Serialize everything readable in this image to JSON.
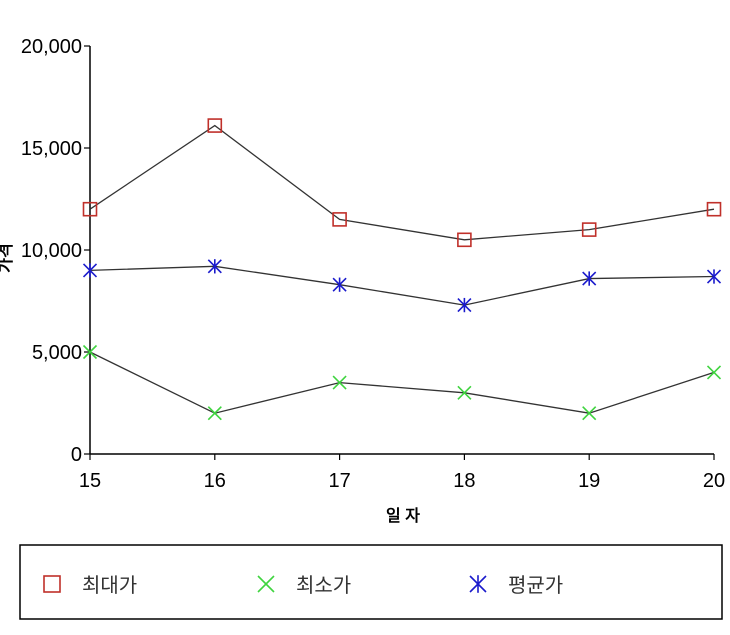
{
  "chart_data": {
    "type": "line",
    "title": "",
    "xlabel": "일 자",
    "ylabel": "가격",
    "categories": [
      "15",
      "16",
      "17",
      "18",
      "19",
      "20"
    ],
    "y_ticks": [
      "0",
      "5,000",
      "10,000",
      "15,000",
      "20,000"
    ],
    "ylim": [
      0,
      20000
    ],
    "grid": false,
    "legend_position": "bottom",
    "series": [
      {
        "name": "최대가",
        "values": [
          12000,
          16100,
          11500,
          10500,
          11000,
          12000
        ],
        "color": "#c0302a",
        "marker": "square"
      },
      {
        "name": "최소가",
        "values": [
          5000,
          2000,
          3500,
          3000,
          2000,
          4000
        ],
        "color": "#3fd43f",
        "marker": "x"
      },
      {
        "name": "평균가",
        "values": [
          9000,
          9200,
          8300,
          7300,
          8600,
          8700
        ],
        "color": "#1a1acc",
        "marker": "asterisk"
      }
    ],
    "line_color": "#333333"
  }
}
